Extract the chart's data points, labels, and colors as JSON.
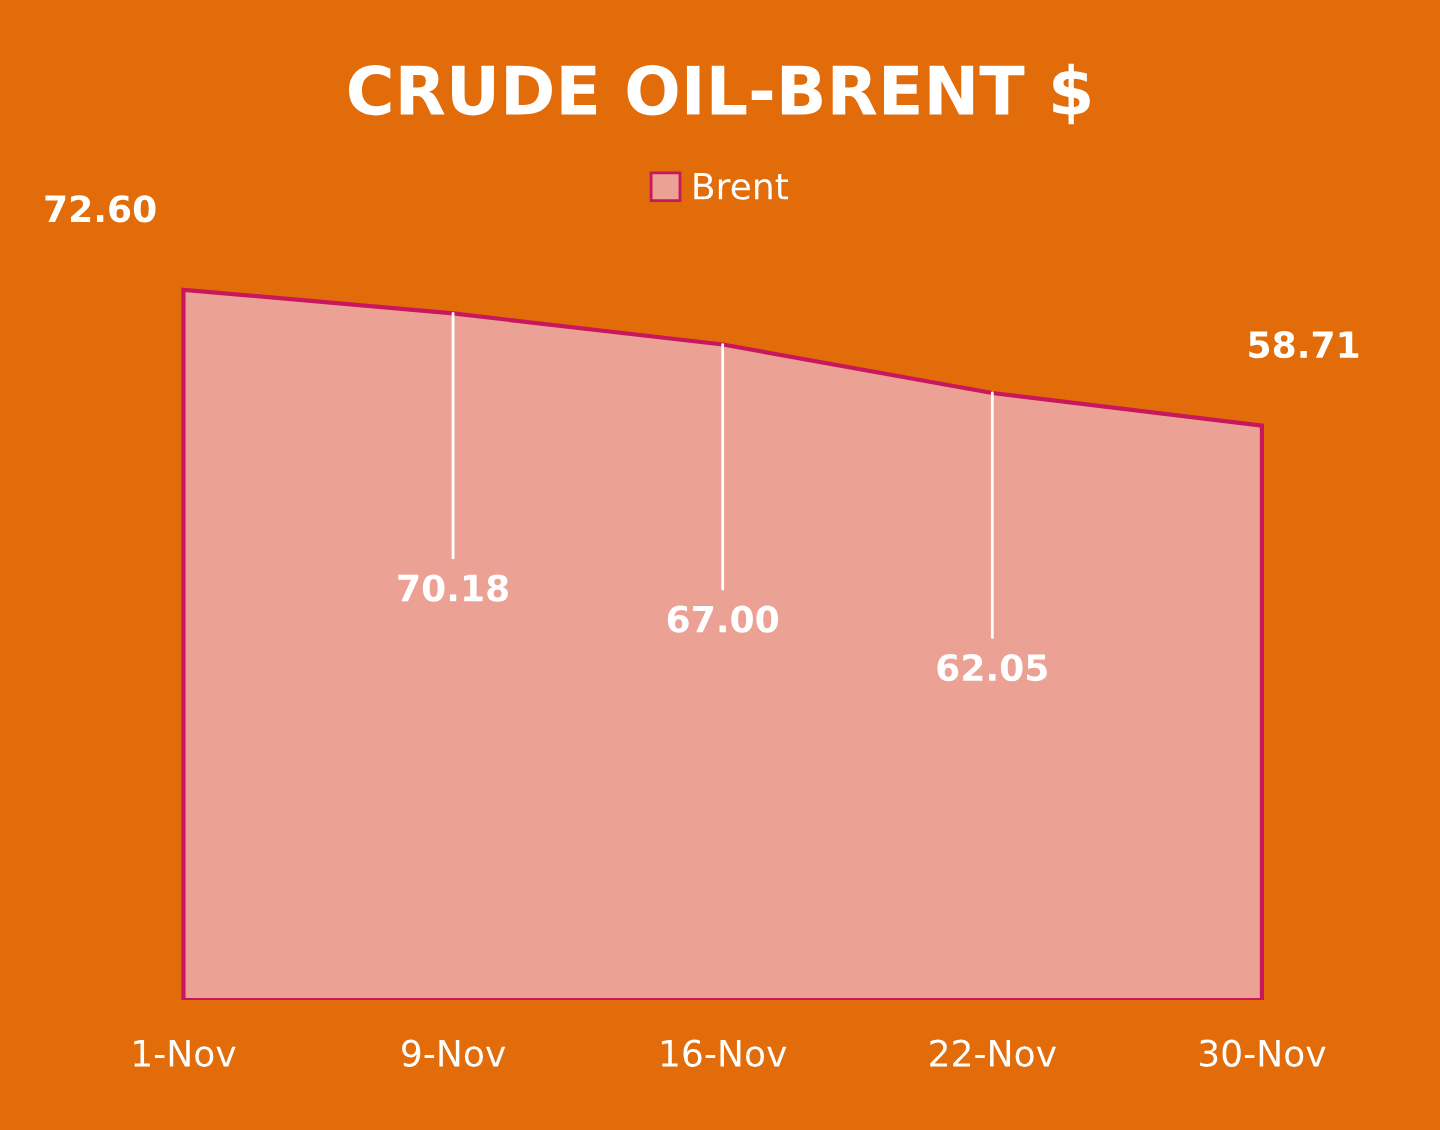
{
  "chart_data": {
    "type": "area",
    "title": "CRUDE OIL-BRENT $",
    "categories": [
      "1-Nov",
      "9-Nov",
      "16-Nov",
      "22-Nov",
      "30-Nov"
    ],
    "series": [
      {
        "name": "Brent",
        "color": "#c8175d",
        "values": [
          72.6,
          70.18,
          67.0,
          62.05,
          58.71
        ],
        "value_labels": [
          "72.60",
          "70.18",
          "67.00",
          "62.05",
          "58.71"
        ]
      }
    ],
    "legend": "top",
    "grid": false
  }
}
